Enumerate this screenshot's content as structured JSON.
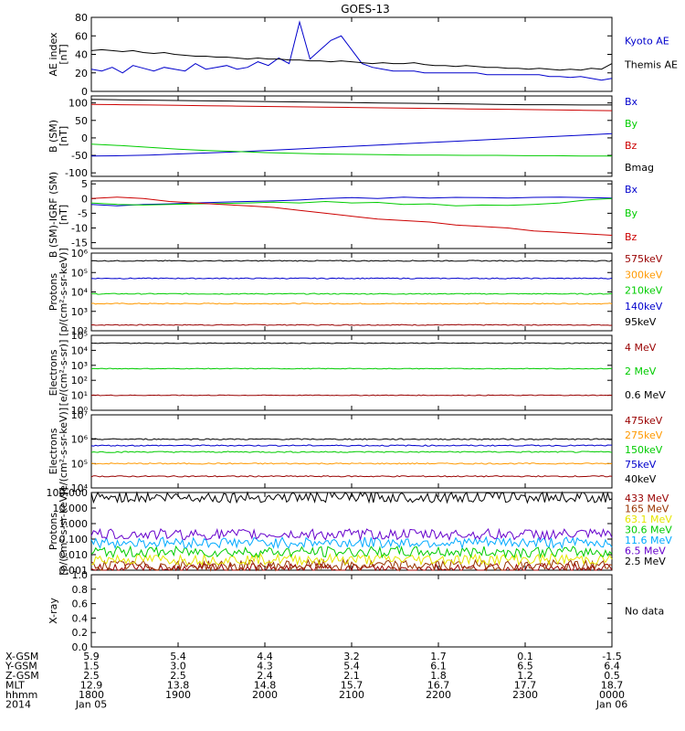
{
  "title": "GOES-13",
  "colors": {
    "black": "#000000",
    "blue": "#0000cc",
    "red": "#cc0000",
    "green": "#00cc00",
    "orange": "#ff9900",
    "darkred": "#990000",
    "purple": "#6600cc",
    "cyan": "#00aaff",
    "yellow": "#e6e600",
    "pink": "#ff6666",
    "brown": "#993300"
  },
  "chart_data": [
    {
      "type": "line",
      "ylabel": "AE index",
      "yunit": "[nT]",
      "ylim": [
        0,
        80
      ],
      "yticks": [
        "0",
        "20",
        "40",
        "60",
        "80"
      ],
      "series": [
        {
          "name": "Kyoto AE",
          "color": "blue",
          "values": [
            24,
            22,
            26,
            20,
            28,
            25,
            22,
            26,
            24,
            22,
            30,
            24,
            26,
            28,
            24,
            26,
            32,
            28,
            36,
            30,
            75,
            35,
            45,
            55,
            60,
            45,
            30,
            26,
            24,
            22,
            22,
            22,
            20,
            20,
            20,
            20,
            20,
            20,
            18,
            18,
            18,
            18,
            18,
            18,
            16,
            16,
            15,
            16,
            14,
            12,
            14
          ]
        },
        {
          "name": "Themis AE",
          "color": "black",
          "values": [
            44,
            45,
            44,
            43,
            44,
            42,
            41,
            42,
            40,
            39,
            38,
            38,
            37,
            37,
            36,
            35,
            36,
            35,
            35,
            34,
            34,
            33,
            33,
            32,
            33,
            32,
            31,
            30,
            31,
            30,
            30,
            31,
            29,
            28,
            28,
            27,
            28,
            27,
            26,
            26,
            25,
            25,
            24,
            25,
            24,
            23,
            24,
            23,
            25,
            24,
            30
          ]
        }
      ]
    },
    {
      "type": "line",
      "ylabel": "B (SM)",
      "yunit": "[nT]",
      "ylim": [
        -110,
        120
      ],
      "yticks": [
        "-100",
        "-50",
        "0",
        "50",
        "100"
      ],
      "series": [
        {
          "name": "Bx",
          "color": "blue",
          "values": [
            -52,
            -51,
            -49,
            -46,
            -43,
            -40,
            -36,
            -32,
            -28,
            -24,
            -20,
            -16,
            -12,
            -8,
            -4,
            0,
            4,
            8,
            12
          ]
        },
        {
          "name": "By",
          "color": "green",
          "values": [
            -18,
            -22,
            -27,
            -32,
            -36,
            -39,
            -42,
            -44,
            -46,
            -47,
            -48,
            -49,
            -49,
            -50,
            -50,
            -51,
            -51,
            -52,
            -52
          ]
        },
        {
          "name": "Bz",
          "color": "red",
          "values": [
            96,
            95,
            94,
            93,
            92,
            91,
            90,
            89,
            88,
            87,
            86,
            85,
            84,
            83,
            82,
            81,
            80,
            79,
            78
          ]
        },
        {
          "name": "Bmag",
          "color": "black",
          "values": [
            110,
            109,
            108,
            107,
            106,
            105,
            104,
            103,
            102,
            101,
            100,
            99,
            98,
            97,
            96,
            95,
            95,
            94,
            94
          ]
        }
      ]
    },
    {
      "type": "line",
      "ylabel": "B (SM)-IGRF (SM)",
      "yunit": "[nT]",
      "ylim": [
        -17,
        6
      ],
      "yticks": [
        "-15",
        "-10",
        "-5",
        "0",
        "5"
      ],
      "series": [
        {
          "name": "Bx",
          "color": "blue",
          "values": [
            -2,
            -2.5,
            -2,
            -1.8,
            -1.5,
            -1.2,
            -1,
            -0.8,
            -0.5,
            0,
            0.3,
            0,
            0.5,
            0.2,
            0.4,
            0.3,
            0.2,
            0.4,
            0.5,
            0.3,
            0.2
          ]
        },
        {
          "name": "By",
          "color": "green",
          "values": [
            -1.5,
            -2,
            -2.2,
            -2,
            -1.8,
            -1.7,
            -1.5,
            -1.2,
            -1.5,
            -1,
            -1.5,
            -1.3,
            -2,
            -1.8,
            -2.5,
            -2.2,
            -2.3,
            -2,
            -1.5,
            -0.5,
            0
          ]
        },
        {
          "name": "Bz",
          "color": "red",
          "values": [
            0,
            0.5,
            0,
            -1,
            -1.5,
            -2,
            -2.5,
            -3,
            -4,
            -5,
            -6,
            -7,
            -7.5,
            -8,
            -9,
            -9.5,
            -10,
            -11,
            -11.5,
            -12,
            -12.5
          ]
        }
      ]
    },
    {
      "type": "line",
      "ylabel": "Protons",
      "yunit": "[p/(cm²-s-sr-keV)]",
      "ylog": true,
      "ylim": [
        100,
        1000000
      ],
      "yticks": [
        "10²",
        "10³",
        "10⁴",
        "10⁵",
        "10⁶"
      ],
      "series": [
        {
          "name": "575keV",
          "color": "darkred",
          "level": 200
        },
        {
          "name": "300keV",
          "color": "orange",
          "level": 2500
        },
        {
          "name": "210keV",
          "color": "green",
          "level": 8000
        },
        {
          "name": "140keV",
          "color": "blue",
          "level": 50000
        },
        {
          "name": "95keV",
          "color": "black",
          "level": 400000
        }
      ]
    },
    {
      "type": "line",
      "ylabel": "Electrons",
      "yunit": "[e/(cm²-s-sr)]",
      "ylog": true,
      "ylim": [
        1,
        100000
      ],
      "yticks": [
        "10⁰",
        "10¹",
        "10²",
        "10³",
        "10⁴",
        "10⁵"
      ],
      "series": [
        {
          "name": "4 MeV",
          "color": "darkred",
          "level": 10
        },
        {
          "name": "2 MeV",
          "color": "green",
          "level": 600
        },
        {
          "name": "0.6 MeV",
          "color": "black",
          "level": 30000
        }
      ]
    },
    {
      "type": "line",
      "ylabel": "Electrons",
      "yunit": "[e/(cm²-s-sr-keV)]",
      "ylog": true,
      "ylim": [
        10000,
        10000000
      ],
      "yticks": [
        "10⁴",
        "10⁵",
        "10⁶",
        "10⁷"
      ],
      "series": [
        {
          "name": "475keV",
          "color": "darkred",
          "level": 30000
        },
        {
          "name": "275keV",
          "color": "orange",
          "level": 100000
        },
        {
          "name": "150keV",
          "color": "green",
          "level": 300000
        },
        {
          "name": "75keV",
          "color": "blue",
          "level": 550000
        },
        {
          "name": "40keV",
          "color": "black",
          "level": 1000000
        }
      ]
    },
    {
      "type": "line",
      "ylabel": "Protons",
      "yunit": "[p/(cm²-s-sr-keV)]",
      "ylog": true,
      "ylim": [
        0.001,
        100
      ],
      "yticks": [
        "0.001",
        "0.010",
        "0.100",
        "1.000",
        "10.000",
        "100.000"
      ],
      "series": [
        {
          "name": "433 MeV",
          "color": "darkred",
          "level": 0.0012
        },
        {
          "name": "165 MeV",
          "color": "brown",
          "level": 0.002
        },
        {
          "name": "63.1 MeV",
          "color": "yellow",
          "level": 0.005
        },
        {
          "name": "30.6 MeV",
          "color": "green",
          "level": 0.015
        },
        {
          "name": "11.6 MeV",
          "color": "cyan",
          "level": 0.06
        },
        {
          "name": "6.5 MeV",
          "color": "purple",
          "level": 0.2
        },
        {
          "name": "2.5 MeV",
          "color": "black",
          "level": 50
        }
      ]
    },
    {
      "type": "line",
      "ylabel": "X-ray",
      "yunit": "",
      "ylim": [
        0,
        1
      ],
      "yticks": [
        "0.0",
        "0.2",
        "0.4",
        "0.6",
        "0.8",
        "1.0"
      ],
      "note": "No data",
      "series": []
    }
  ],
  "x_axis": {
    "row_labels": [
      "X-GSM",
      "Y-GSM",
      "Z-GSM",
      "MLT",
      "hhmm",
      "2014"
    ],
    "columns": [
      {
        "values": [
          "5.9",
          "1.5",
          "2.5",
          "12.9",
          "1800",
          "Jan 05"
        ]
      },
      {
        "values": [
          "5.4",
          "3.0",
          "2.5",
          "13.8",
          "1900",
          ""
        ]
      },
      {
        "values": [
          "4.4",
          "4.3",
          "2.4",
          "14.8",
          "2000",
          ""
        ]
      },
      {
        "values": [
          "3.2",
          "5.4",
          "2.1",
          "15.7",
          "2100",
          ""
        ]
      },
      {
        "values": [
          "1.7",
          "6.1",
          "1.8",
          "16.7",
          "2200",
          ""
        ]
      },
      {
        "values": [
          "0.1",
          "6.5",
          "1.2",
          "17.7",
          "2300",
          ""
        ]
      },
      {
        "values": [
          "-1.5",
          "6.4",
          "0.5",
          "18.7",
          "0000",
          "Jan 06"
        ]
      }
    ]
  }
}
